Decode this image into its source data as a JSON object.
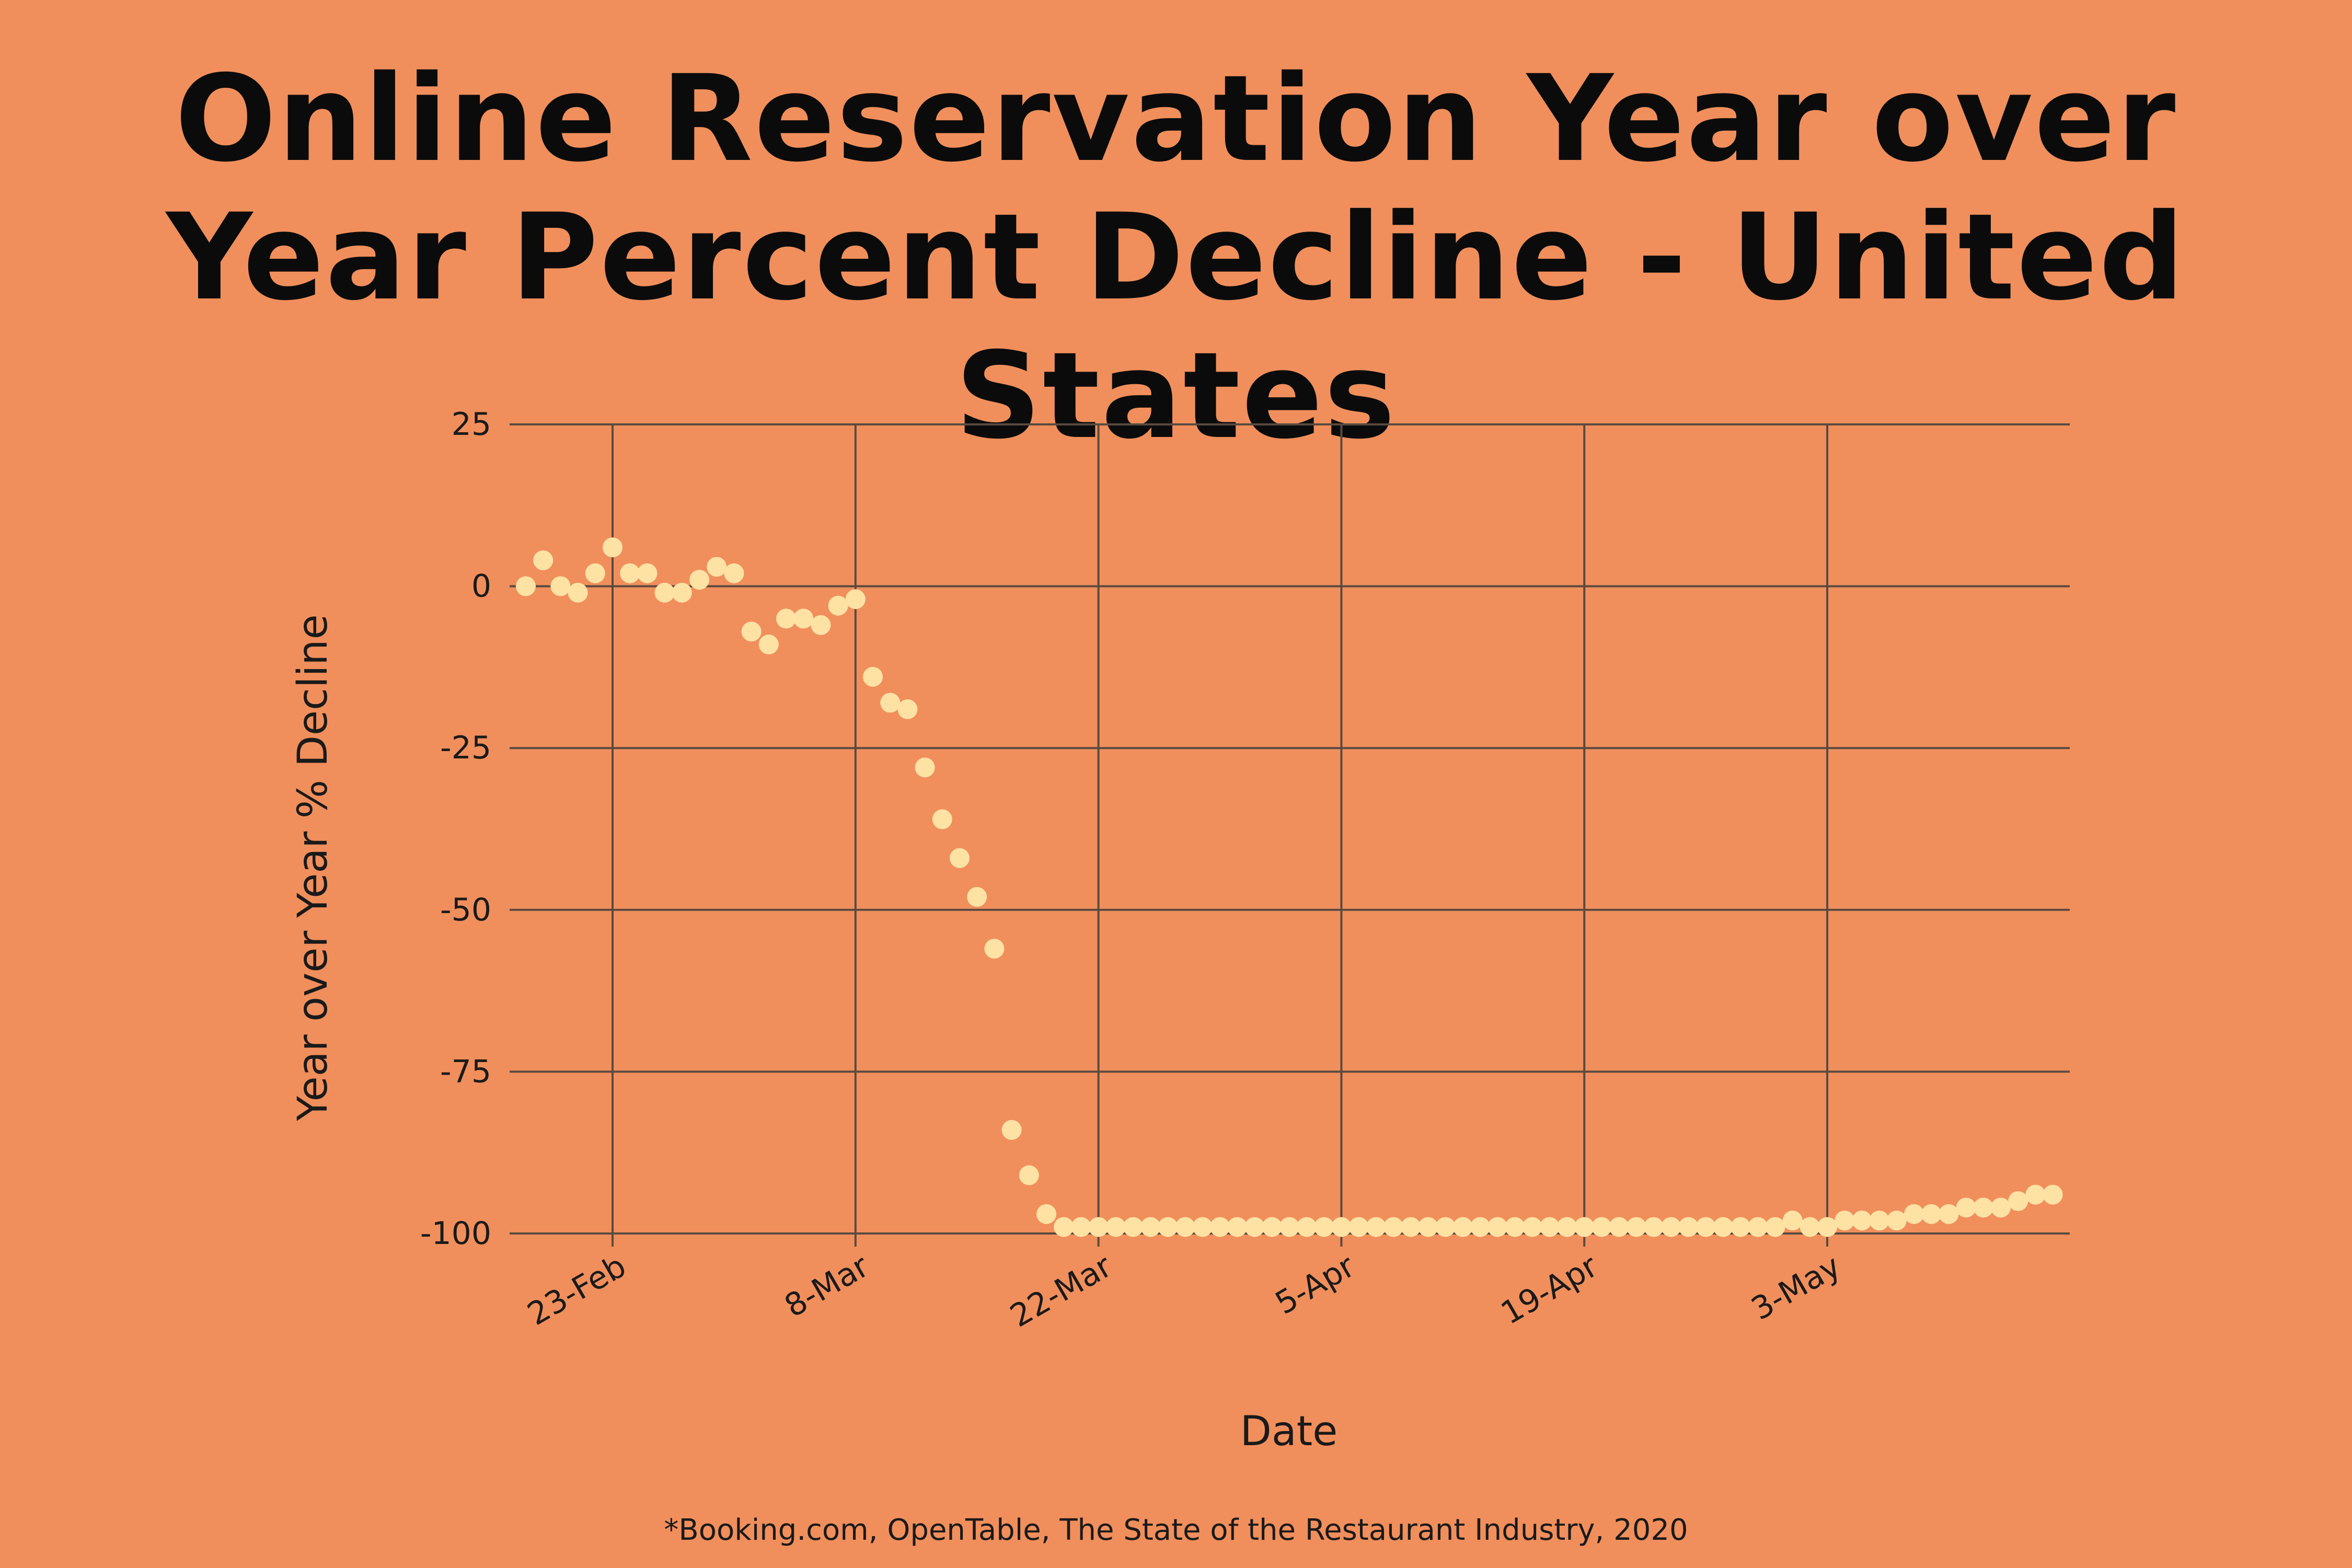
{
  "title": {
    "line1": "Online Reservation Year over",
    "line2": "Year Percent Decline - United States"
  },
  "source": "*Booking.com, OpenTable, The State of the Restaurant Industry, 2020",
  "colors": {
    "background": "#f08f5c",
    "points": "#fde2a4",
    "grid": "#5a4a40"
  },
  "chart_data": {
    "type": "scatter",
    "title": "Online Reservation Year over Year Percent Decline - United States",
    "xlabel": "Date",
    "ylabel": "Year over Year % Decline",
    "ylim": [
      -100,
      25
    ],
    "yticks": [
      25,
      0,
      -25,
      -50,
      -75,
      -100
    ],
    "xticks": [
      {
        "label": "23-Feb",
        "day": 0
      },
      {
        "label": "8-Mar",
        "day": 14
      },
      {
        "label": "22-Mar",
        "day": 28
      },
      {
        "label": "5-Apr",
        "day": 42
      },
      {
        "label": "19-Apr",
        "day": 56
      },
      {
        "label": "3-May",
        "day": 70
      }
    ],
    "x_start": "18-Feb",
    "x_unit": "days since 23-Feb",
    "x_range": [
      -6,
      84
    ],
    "grid": true,
    "series": [
      {
        "name": "Year over Year % Decline",
        "x": [
          -5,
          -4,
          -3,
          -2,
          -1,
          0,
          1,
          2,
          3,
          4,
          5,
          6,
          7,
          8,
          9,
          10,
          11,
          12,
          13,
          14,
          15,
          16,
          17,
          18,
          19,
          20,
          21,
          22,
          23,
          24,
          25,
          26,
          27,
          28,
          29,
          30,
          31,
          32,
          33,
          34,
          35,
          36,
          37,
          38,
          39,
          40,
          41,
          42,
          43,
          44,
          45,
          46,
          47,
          48,
          49,
          50,
          51,
          52,
          53,
          54,
          55,
          56,
          57,
          58,
          59,
          60,
          61,
          62,
          63,
          64,
          65,
          66,
          67,
          68,
          69,
          70,
          71,
          72,
          73,
          74,
          75,
          76,
          77,
          78,
          79,
          80,
          81,
          82,
          83
        ],
        "values": [
          0,
          4,
          0,
          -1,
          2,
          6,
          2,
          2,
          -1,
          -1,
          1,
          3,
          2,
          -7,
          -9,
          -5,
          -5,
          -6,
          -3,
          -2,
          -14,
          -18,
          -19,
          -28,
          -36,
          -42,
          -48,
          -56,
          -84,
          -91,
          -97,
          -99,
          -99,
          -99,
          -99,
          -99,
          -99,
          -99,
          -99,
          -99,
          -99,
          -99,
          -99,
          -99,
          -99,
          -99,
          -99,
          -99,
          -99,
          -99,
          -99,
          -99,
          -99,
          -99,
          -99,
          -99,
          -99,
          -99,
          -99,
          -99,
          -99,
          -99,
          -99,
          -99,
          -99,
          -99,
          -99,
          -99,
          -99,
          -99,
          -99,
          -99,
          -99,
          -98,
          -99,
          -99,
          -98,
          -98,
          -98,
          -98,
          -97,
          -97,
          -97,
          -96,
          -96,
          -96,
          -95,
          -94,
          -94
        ]
      }
    ]
  }
}
